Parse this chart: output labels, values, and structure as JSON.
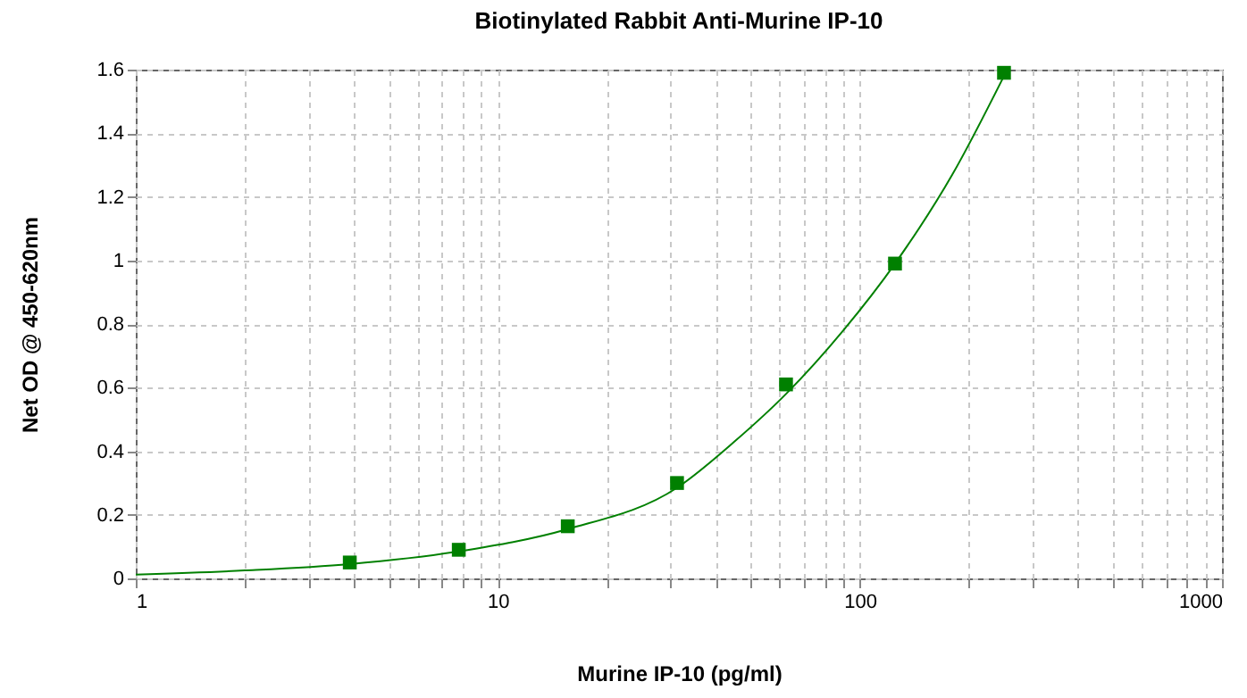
{
  "chart_data": {
    "type": "scatter",
    "title": "Biotinylated Rabbit Anti-Murine IP-10",
    "xlabel": "Murine IP-10 (pg/ml)",
    "ylabel": "Net OD @ 450-620nm",
    "log": "x",
    "grid": true,
    "xlim": [
      1,
      1000
    ],
    "ylim": [
      0,
      1.6
    ],
    "xticks": [
      1,
      {
        "value": 2,
        "label": null
      },
      {
        "value": 3,
        "label": null
      },
      {
        "value": 4,
        "label": null
      },
      {
        "value": 5,
        "label": null
      },
      {
        "value": 6,
        "label": null
      },
      {
        "value": 7,
        "label": null
      },
      {
        "value": 8,
        "label": null
      },
      {
        "value": 9,
        "label": null
      },
      10,
      {
        "value": 20,
        "label": null
      },
      {
        "value": 30,
        "label": null
      },
      {
        "value": 40,
        "label": null
      },
      {
        "value": 50,
        "label": null
      },
      {
        "value": 60,
        "label": null
      },
      {
        "value": 70,
        "label": null
      },
      {
        "value": 80,
        "label": null
      },
      {
        "value": 90,
        "label": null
      },
      100,
      {
        "value": 200,
        "label": null
      },
      {
        "value": 300,
        "label": null
      },
      {
        "value": 400,
        "label": null
      },
      {
        "value": 500,
        "label": null
      },
      {
        "value": 600,
        "label": null
      },
      {
        "value": 700,
        "label": null
      },
      {
        "value": 800,
        "label": null
      },
      {
        "value": 900,
        "label": null
      },
      1000
    ],
    "yticks": [
      0,
      0.2,
      0.4,
      0.6,
      0.8,
      1,
      1.2,
      1.4,
      1.6
    ],
    "series": [
      {
        "type": "line",
        "color": "#008000",
        "line_style": "solid",
        "marker": "none",
        "x": [
          1,
          2,
          3.9,
          7.8,
          15.6,
          31.25,
          45,
          62.5,
          90,
          125,
          180,
          250
        ],
        "values": [
          0.012,
          0.025,
          0.045,
          0.085,
          0.155,
          0.285,
          0.43,
          0.58,
          0.78,
          0.99,
          1.27,
          1.58
        ]
      },
      {
        "type": "scatter",
        "color": "#008000",
        "marker": "square",
        "x": [
          3.9,
          7.8,
          15.6,
          31.25,
          62.5,
          125,
          250
        ],
        "values": [
          0.05,
          0.09,
          0.164,
          0.3,
          0.61,
          0.99,
          1.59
        ]
      }
    ]
  }
}
